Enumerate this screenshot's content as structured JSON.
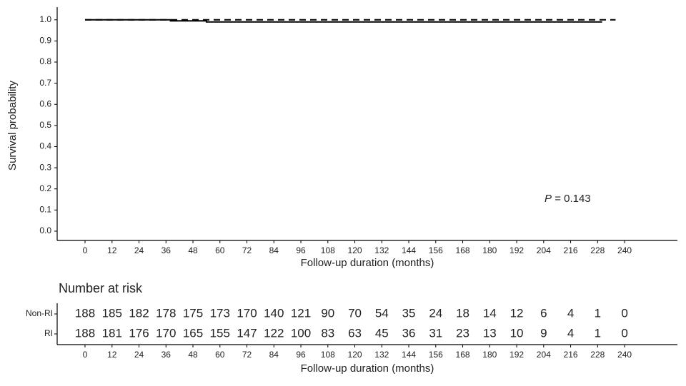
{
  "chart_data": [
    {
      "type": "line",
      "xlabel": "Follow-up duration (months)",
      "ylabel": "Survival probability",
      "annotation": {
        "prefix": "P",
        "text": "= 0.143"
      },
      "xlim": [
        -12.4,
        263.5
      ],
      "ylim": [
        -0.044,
        1.06
      ],
      "xticks": [
        0,
        12,
        24,
        36,
        48,
        60,
        72,
        84,
        96,
        108,
        120,
        132,
        144,
        156,
        168,
        180,
        192,
        204,
        216,
        228,
        240
      ],
      "yticks": [
        {
          "value": 0,
          "label": "0.0"
        },
        0.1,
        0.2,
        0.3,
        0.4,
        0.5,
        0.6,
        0.7,
        0.8,
        0.9,
        {
          "value": 1,
          "label": "1.0"
        }
      ],
      "series": [
        {
          "style": "solid",
          "color": "#000000",
          "x": [
            0,
            38,
            38,
            54,
            54,
            230
          ],
          "values": [
            1,
            1,
            0.995,
            0.995,
            0.99,
            0.99
          ]
        },
        {
          "style": "dashed",
          "color": "#000000",
          "x": [
            0,
            236
          ],
          "values": [
            1,
            1
          ]
        }
      ]
    },
    {
      "type": "risk_table",
      "title": "Number at risk",
      "xlabel": "Follow-up duration (months)",
      "xlim": [
        -12.4,
        263.5
      ],
      "x": [
        0,
        12,
        24,
        36,
        48,
        60,
        72,
        84,
        96,
        108,
        120,
        132,
        144,
        156,
        168,
        180,
        192,
        204,
        216,
        228,
        240
      ],
      "xticks": [
        0,
        12,
        24,
        36,
        48,
        60,
        72,
        84,
        96,
        108,
        120,
        132,
        144,
        156,
        168,
        180,
        192,
        204,
        216,
        228,
        240
      ],
      "series": [
        {
          "name": "Non-RI",
          "values": [
            188,
            185,
            182,
            178,
            175,
            173,
            170,
            140,
            121,
            90,
            70,
            54,
            35,
            24,
            18,
            14,
            12,
            6,
            4,
            1,
            0
          ]
        },
        {
          "name": "RI",
          "values": [
            188,
            181,
            176,
            170,
            165,
            155,
            147,
            122,
            100,
            83,
            63,
            45,
            36,
            31,
            23,
            13,
            10,
            9,
            4,
            1,
            0
          ]
        }
      ]
    }
  ]
}
